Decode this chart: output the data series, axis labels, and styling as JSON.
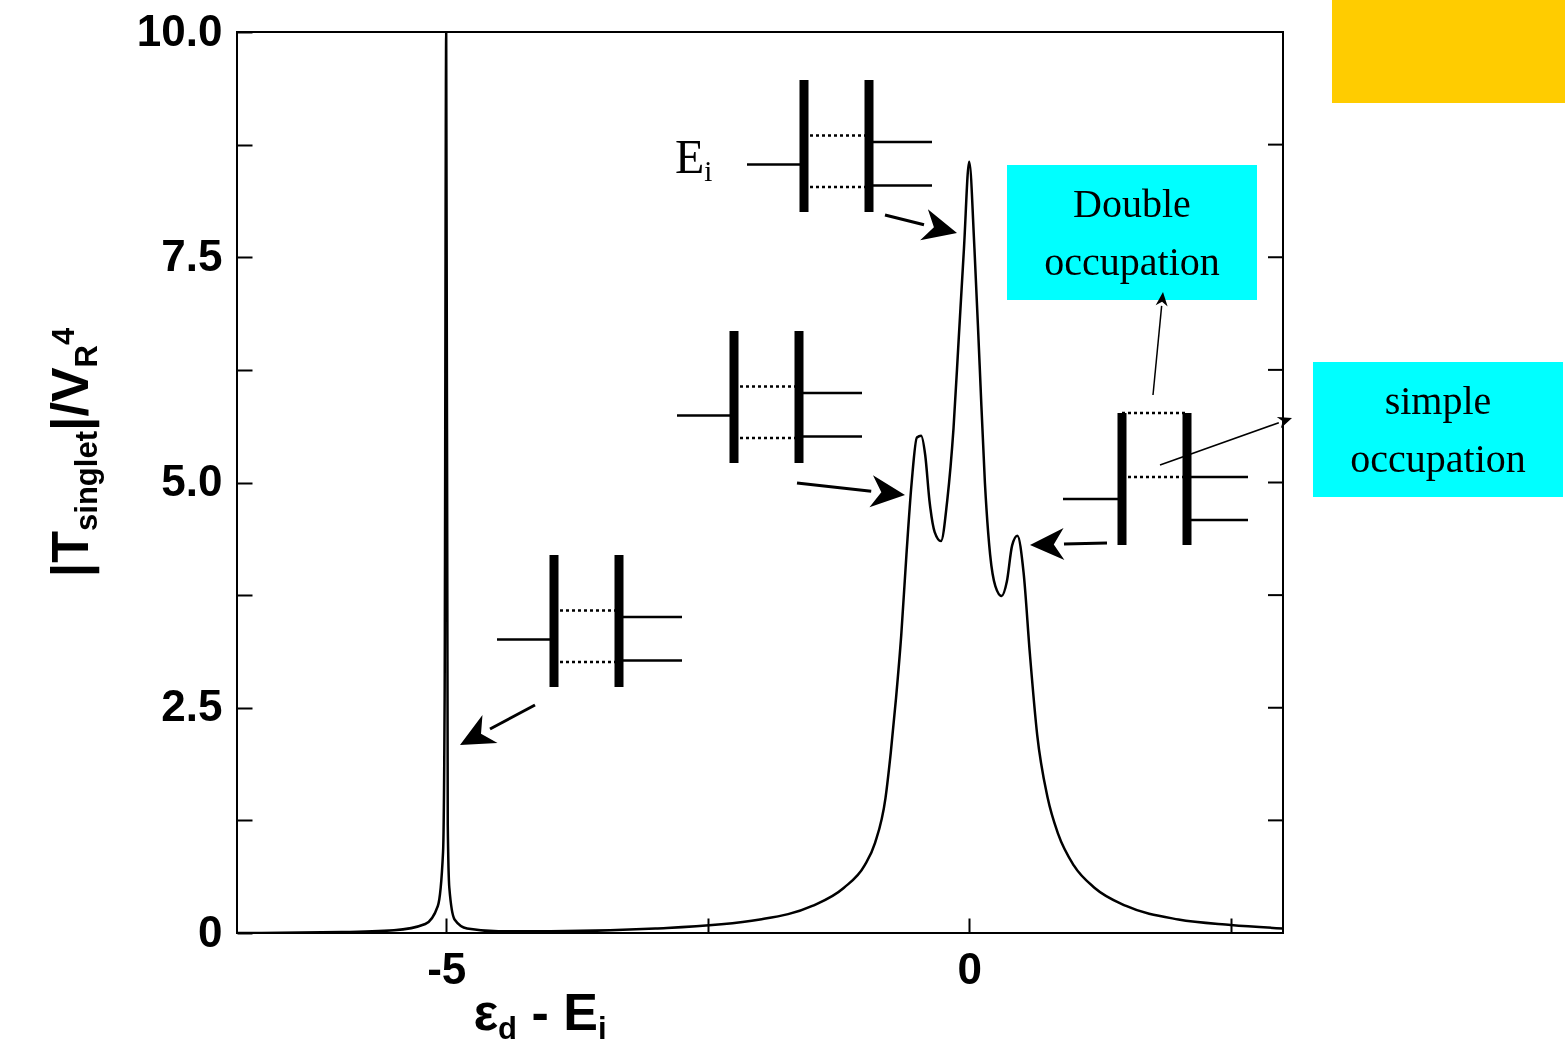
{
  "chart_data": {
    "type": "line",
    "xlabel": "ε$_{d}$ - E$_{i}$",
    "ylabel": "|T$_{singlet}$|/V$_{R}$$^{4}$",
    "annotations": [
      "E$_{i}$",
      "Double occupation",
      "simple occupation"
    ],
    "xlim": [
      -7,
      3
    ],
    "xticks": [
      -5,
      {
        "value": -2.5,
        "label": null
      },
      0,
      {
        "value": 2.5,
        "label": null
      }
    ],
    "ylim": [
      0,
      10
    ],
    "yticks": [
      0,
      {
        "value": 1.25,
        "label": null
      },
      {
        "value": 2.5,
        "label": "2.5"
      },
      {
        "value": 3.75,
        "label": null
      },
      {
        "value": 5,
        "label": "5.0"
      },
      {
        "value": 6.25,
        "label": null
      },
      {
        "value": 7.5,
        "label": "7.5"
      },
      {
        "value": 8.75,
        "label": null
      },
      {
        "value": 10,
        "label": "10.0"
      }
    ],
    "grid": false,
    "marker": "none",
    "line_style": "solid",
    "series": [
      {
        "color": "#000000",
        "x": [
          -7,
          -6,
          -5.5,
          -5.2,
          -5.08,
          -5.03,
          -5.015,
          -5,
          -4.985,
          -4.97,
          -4.92,
          -4.8,
          -4.5,
          -4,
          -3,
          -2,
          -1.5,
          -1.2,
          -1,
          -0.9,
          -0.8,
          -0.75,
          -0.7,
          -0.65,
          -0.6,
          -0.55,
          -0.5,
          -0.46,
          -0.42,
          -0.38,
          -0.33,
          -0.27,
          -0.21,
          -0.15,
          -0.1,
          -0.05,
          0,
          0.05,
          0.1,
          0.15,
          0.2,
          0.25,
          0.31,
          0.36,
          0.41,
          0.46,
          0.52,
          0.58,
          0.65,
          0.75,
          0.85,
          1,
          1.2,
          1.5,
          2,
          2.5,
          3
        ],
        "values": [
          0,
          0.01,
          0.03,
          0.1,
          0.3,
          0.9,
          2.6,
          10,
          1.2,
          0.5,
          0.15,
          0.05,
          0.02,
          0.02,
          0.05,
          0.15,
          0.3,
          0.5,
          0.75,
          1.0,
          1.5,
          2.0,
          2.6,
          3.3,
          4.2,
          5.0,
          5.5,
          5.52,
          5.3,
          4.8,
          4.45,
          4.35,
          4.8,
          5.6,
          6.6,
          7.6,
          8.56,
          7.6,
          6.3,
          5.0,
          4.2,
          3.85,
          3.74,
          3.9,
          4.3,
          4.41,
          4.0,
          3.1,
          2.2,
          1.5,
          1.1,
          0.75,
          0.5,
          0.3,
          0.15,
          0.09,
          0.05
        ]
      }
    ]
  }
}
